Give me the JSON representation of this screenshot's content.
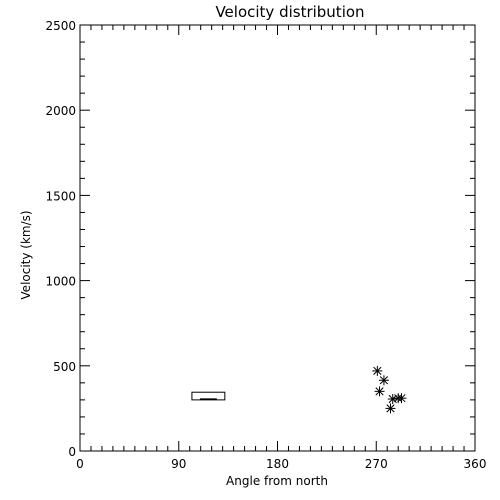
{
  "chart_data": {
    "type": "scatter",
    "title": "Velocity distribution",
    "xlabel": "Angle from north",
    "ylabel": "Velocity (km/s)",
    "xlim": [
      0,
      360
    ],
    "ylim": [
      0,
      2500
    ],
    "x_ticks": [
      0,
      90,
      180,
      270,
      360
    ],
    "x_ticklabels": [
      "0",
      "90",
      "180",
      "270",
      "360"
    ],
    "y_ticks": [
      0,
      500,
      1000,
      1500,
      2000,
      2500
    ],
    "y_ticklabels": [
      "0",
      "500",
      "1000",
      "1500",
      "2000",
      "2500"
    ],
    "x_minor_step": 10,
    "y_minor_step": 100,
    "grid": false,
    "box": {
      "x_min": 102,
      "x_max": 132,
      "q1": 300,
      "q3": 345,
      "median": 305
    },
    "points": [
      {
        "x": 271,
        "y": 470
      },
      {
        "x": 277,
        "y": 415
      },
      {
        "x": 273,
        "y": 350
      },
      {
        "x": 285,
        "y": 305
      },
      {
        "x": 290,
        "y": 310
      },
      {
        "x": 293,
        "y": 310
      },
      {
        "x": 283,
        "y": 250
      }
    ]
  }
}
